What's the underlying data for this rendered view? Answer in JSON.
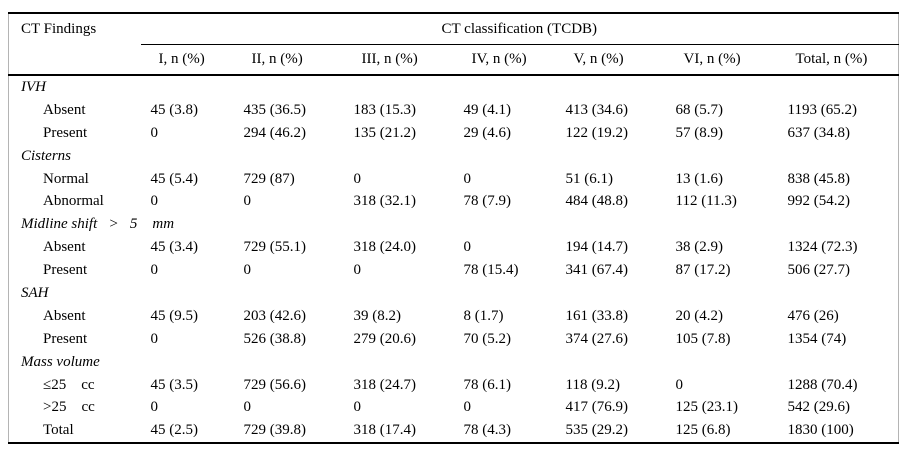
{
  "table": {
    "col_header_left": "CT Findings",
    "group_header": "CT classification (TCDB)",
    "columns": [
      "I, n (%)",
      "II, n (%)",
      "III, n (%)",
      "IV, n (%)",
      "V, n (%)",
      "VI, n (%)",
      "Total, n (%)"
    ],
    "sections": [
      {
        "label": "IVH",
        "rows": [
          {
            "label": "Absent",
            "values": [
              "45 (3.8)",
              "435 (36.5)",
              "183 (15.3)",
              "49 (4.1)",
              "413 (34.6)",
              "68 (5.7)",
              "1193 (65.2)"
            ]
          },
          {
            "label": "Present",
            "values": [
              "0",
              "294 (46.2)",
              "135 (21.2)",
              "29 (4.6)",
              "122 (19.2)",
              "57 (8.9)",
              "637 (34.8)"
            ]
          }
        ]
      },
      {
        "label": "Cisterns",
        "rows": [
          {
            "label": "Normal",
            "values": [
              "45 (5.4)",
              "729 (87)",
              "0",
              "0",
              "51 (6.1)",
              "13 (1.6)",
              "838 (45.8)"
            ]
          },
          {
            "label": "Abnormal",
            "values": [
              "0",
              "0",
              "318 (32.1)",
              "78 (7.9)",
              "484 (48.8)",
              "112 (11.3)",
              "992 (54.2)"
            ]
          }
        ]
      },
      {
        "label": "Midline shift   >   5    mm",
        "rows": [
          {
            "label": "Absent",
            "values": [
              "45 (3.4)",
              "729 (55.1)",
              "318 (24.0)",
              "0",
              "194 (14.7)",
              "38 (2.9)",
              "1324 (72.3)"
            ]
          },
          {
            "label": "Present",
            "values": [
              "0",
              "0",
              "0",
              "78 (15.4)",
              "341 (67.4)",
              "87 (17.2)",
              "506 (27.7)"
            ]
          }
        ]
      },
      {
        "label": "SAH",
        "rows": [
          {
            "label": "Absent",
            "values": [
              "45 (9.5)",
              "203 (42.6)",
              "39 (8.2)",
              "8 (1.7)",
              "161 (33.8)",
              "20 (4.2)",
              "476 (26)"
            ]
          },
          {
            "label": "Present",
            "values": [
              "0",
              "526 (38.8)",
              "279 (20.6)",
              "70 (5.2)",
              "374 (27.6)",
              "105 (7.8)",
              "1354 (74)"
            ]
          }
        ]
      },
      {
        "label": "Mass volume",
        "rows": [
          {
            "label": "≤25    cc",
            "values": [
              "45 (3.5)",
              "729 (56.6)",
              "318 (24.7)",
              "78 (6.1)",
              "118 (9.2)",
              "0",
              "1288 (70.4)"
            ]
          },
          {
            "label": ">25    cc",
            "values": [
              "0",
              "0",
              "0",
              "0",
              "417 (76.9)",
              "125 (23.1)",
              "542 (29.6)"
            ]
          },
          {
            "label": "Total",
            "values": [
              "45 (2.5)",
              "729 (39.8)",
              "318 (17.4)",
              "78 (4.3)",
              "535 (29.2)",
              "125 (6.8)",
              "1830 (100)"
            ]
          }
        ]
      }
    ]
  }
}
